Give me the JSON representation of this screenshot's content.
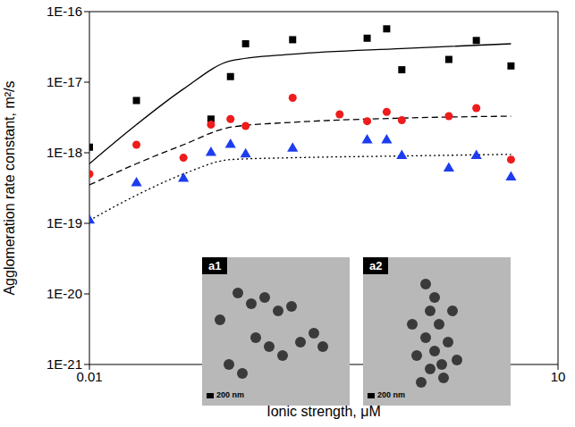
{
  "chart_data": {
    "type": "scatter",
    "x_label": "Ionic strength, μM",
    "y_label": "Agglomeration rate constant, m²/s",
    "log": true,
    "grid": false,
    "xlim": [
      0.01,
      10
    ],
    "xticks": [
      0.01,
      0.1,
      1,
      10
    ],
    "ylim": [
      1e-21,
      1e-16
    ],
    "yticks": [
      {
        "value": 1e-21,
        "label": "1E-21"
      },
      {
        "value": 1e-20,
        "label": "1E-20"
      },
      {
        "value": 1e-19,
        "label": "1E-19"
      },
      {
        "value": 1e-18,
        "label": "1E-18"
      },
      {
        "value": 1e-17,
        "label": "1E-17"
      },
      {
        "value": 1e-16,
        "label": "1E-16"
      }
    ],
    "series": [
      {
        "type": "line",
        "line_style": "solid",
        "color": "#000000",
        "x": [
          0.01,
          0.02,
          0.04,
          0.08,
          0.2,
          1,
          5
        ],
        "values": [
          7e-19,
          2.5e-18,
          8e-18,
          2e-17,
          2.5e-17,
          3e-17,
          3.5e-17
        ]
      },
      {
        "type": "line",
        "line_style": "dashed",
        "color": "#000000",
        "x": [
          0.01,
          0.02,
          0.04,
          0.08,
          0.2,
          1,
          5
        ],
        "values": [
          3.5e-19,
          7e-19,
          1.3e-18,
          2.3e-18,
          2.7e-18,
          3.1e-18,
          3.3e-18
        ]
      },
      {
        "type": "line",
        "line_style": "dotted",
        "color": "#000000",
        "x": [
          0.01,
          0.02,
          0.04,
          0.08,
          0.2,
          1,
          5
        ],
        "values": [
          1.1e-19,
          2.5e-19,
          5e-19,
          8e-19,
          8.5e-19,
          9e-19,
          9.5e-19
        ]
      },
      {
        "type": "scatter",
        "marker": "square",
        "color": "#000000",
        "x": [
          0.01,
          0.02,
          0.06,
          0.08,
          0.1,
          0.2,
          0.6,
          0.8,
          1,
          2,
          3,
          5
        ],
        "values": [
          1.2e-18,
          5.5e-18,
          3e-18,
          1.2e-17,
          3.5e-17,
          4e-17,
          4.2e-17,
          5.7e-17,
          1.5e-17,
          2.1e-17,
          3.9e-17,
          1.7e-17
        ]
      },
      {
        "type": "scatter",
        "marker": "circle",
        "color": "#ee1c1c",
        "x": [
          0.01,
          0.02,
          0.04,
          0.06,
          0.08,
          0.1,
          0.2,
          0.4,
          0.6,
          0.8,
          1,
          2,
          3,
          5
        ],
        "values": [
          5e-19,
          1.3e-18,
          8.5e-19,
          2.5e-18,
          3e-18,
          2.4e-18,
          6e-18,
          3.5e-18,
          2.8e-18,
          3.8e-18,
          2.9e-18,
          3.3e-18,
          4.3e-18,
          8e-19
        ]
      },
      {
        "type": "scatter",
        "marker": "triangle",
        "color": "#1c3cf0",
        "x": [
          0.01,
          0.02,
          0.04,
          0.06,
          0.08,
          0.1,
          0.2,
          0.6,
          0.8,
          1,
          2,
          3,
          5
        ],
        "values": [
          1.1e-19,
          3.7e-19,
          4.3e-19,
          1e-18,
          1.3e-18,
          9.5e-19,
          1.15e-18,
          1.5e-18,
          1.5e-18,
          9e-19,
          6e-19,
          9e-19,
          4.5e-19
        ]
      }
    ],
    "insets": [
      {
        "label": "a1",
        "scale_bar": "200 nm"
      },
      {
        "label": "a2",
        "scale_bar": "200 nm"
      }
    ]
  }
}
